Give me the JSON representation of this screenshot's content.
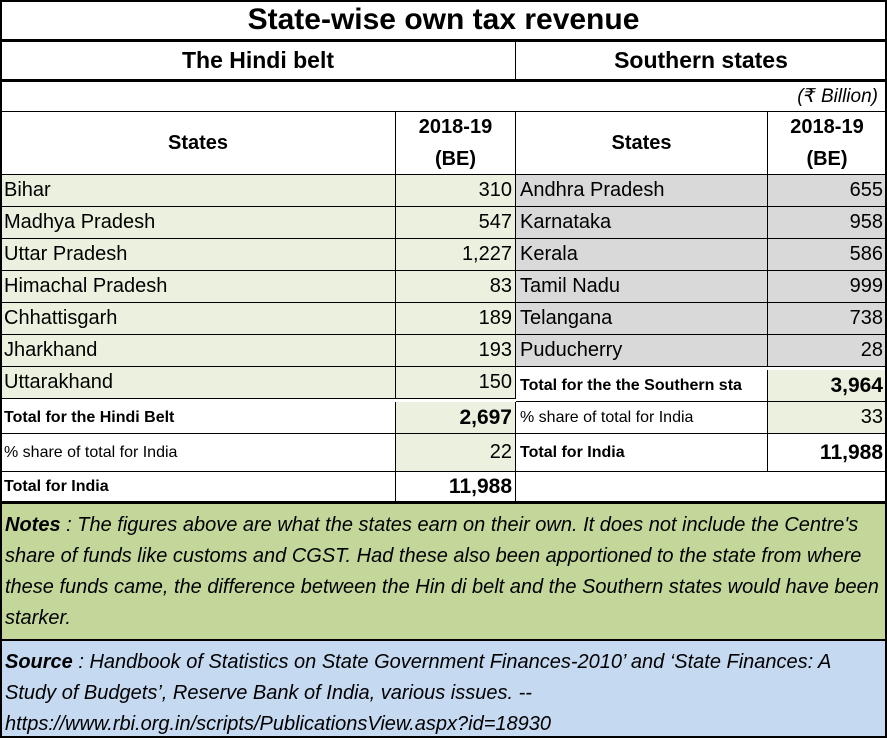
{
  "title": "State-wise own tax revenue",
  "groups": {
    "left": "The Hindi belt",
    "right": "Southern states"
  },
  "unit": "(₹ Billion)",
  "headers": {
    "states": "States",
    "year_line1": "2018-19",
    "year_line2": "(BE)"
  },
  "hindi_belt": {
    "rows": [
      {
        "state": "Bihar",
        "value": "310"
      },
      {
        "state": "Madhya Pradesh",
        "value": "547"
      },
      {
        "state": "Uttar Pradesh",
        "value": "1,227"
      },
      {
        "state": "Himachal Pradesh",
        "value": "83"
      },
      {
        "state": "Chhattisgarh",
        "value": "189"
      },
      {
        "state": "Jharkhand",
        "value": "193"
      },
      {
        "state": "Uttarakhand",
        "value": "150"
      }
    ],
    "total_label": "Total for the Hindi Belt",
    "total_value": "2,697",
    "share_label": "% share of total for India",
    "share_value": "22",
    "india_label": "Total for India",
    "india_value": "11,988"
  },
  "southern": {
    "rows": [
      {
        "state": "Andhra Pradesh",
        "value": "655"
      },
      {
        "state": "Karnataka",
        "value": "958"
      },
      {
        "state": "Kerala",
        "value": "586"
      },
      {
        "state": "Tamil Nadu",
        "value": "999"
      },
      {
        "state": "Telangana",
        "value": "738"
      },
      {
        "state": "Puducherry",
        "value": "28"
      }
    ],
    "total_label": "Total for the the Southern sta",
    "total_value": "3,964",
    "share_label": "% share of total for India",
    "share_value": "33",
    "india_label": "Total for India",
    "india_value": "11,988"
  },
  "notes": {
    "label": "Notes",
    "text": " : The figures above are what the states earn on their own.  It does not include the Centre's share of funds like customs and CGST.  Had these also been apportioned to the state from where these funds came, the difference between the Hin di belt and the Southern states would have been starker."
  },
  "source": {
    "label": "Source",
    "text": " : Handbook of Statistics on State Government Finances-2010’ and ‘State Finances: A Study of Budgets’, Reserve Bank of India, various issues.  -- https://www.rbi.org.in/scripts/PublicationsView.aspx?id=18930"
  },
  "colors": {
    "hindi_fill": "#ebf1de",
    "south_fill": "#d9d9d9",
    "notes_fill": "#c4d79b",
    "source_fill": "#c5d9f1"
  }
}
